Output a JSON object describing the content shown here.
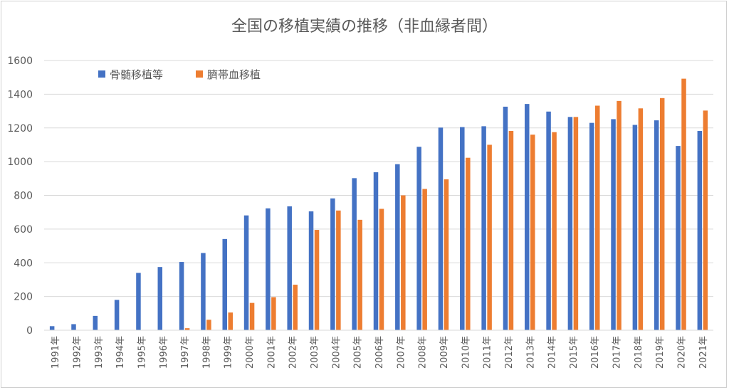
{
  "chart_data": {
    "type": "bar",
    "title": "全国の移植実績の推移（非血縁者間）",
    "categories": [
      "1991年",
      "1992年",
      "1993年",
      "1994年",
      "1995年",
      "1996年",
      "1997年",
      "1998年",
      "1999年",
      "2000年",
      "2001年",
      "2002年",
      "2003年",
      "2004年",
      "2005年",
      "2006年",
      "2007年",
      "2008年",
      "2009年",
      "2010年",
      "2011年",
      "2012年",
      "2013年",
      "2014年",
      "2015年",
      "2016年",
      "2017年",
      "2018年",
      "2019年",
      "2020年",
      "2021年"
    ],
    "series": [
      {
        "name": "骨髄移植等",
        "color": "#4472C4",
        "values": [
          24,
          36,
          85,
          180,
          340,
          375,
          405,
          458,
          541,
          681,
          723,
          735,
          705,
          782,
          902,
          937,
          985,
          1088,
          1202,
          1205,
          1210,
          1326,
          1342,
          1297,
          1265,
          1230,
          1252,
          1218,
          1245,
          1093,
          1182
        ]
      },
      {
        "name": "臍帯血移植",
        "color": "#ED7D31",
        "values": [
          0,
          0,
          0,
          0,
          0,
          0,
          12,
          62,
          105,
          162,
          196,
          270,
          595,
          710,
          655,
          720,
          800,
          838,
          895,
          1023,
          1100,
          1182,
          1160,
          1175,
          1265,
          1332,
          1360,
          1316,
          1377,
          1492,
          1303
        ]
      }
    ],
    "yticks": [
      0,
      200,
      400,
      600,
      800,
      1000,
      1200,
      1400,
      1600
    ],
    "ylim": [
      0,
      1600
    ],
    "xlabel": "",
    "ylabel": "",
    "legend_position": "top-left",
    "grid": true
  }
}
